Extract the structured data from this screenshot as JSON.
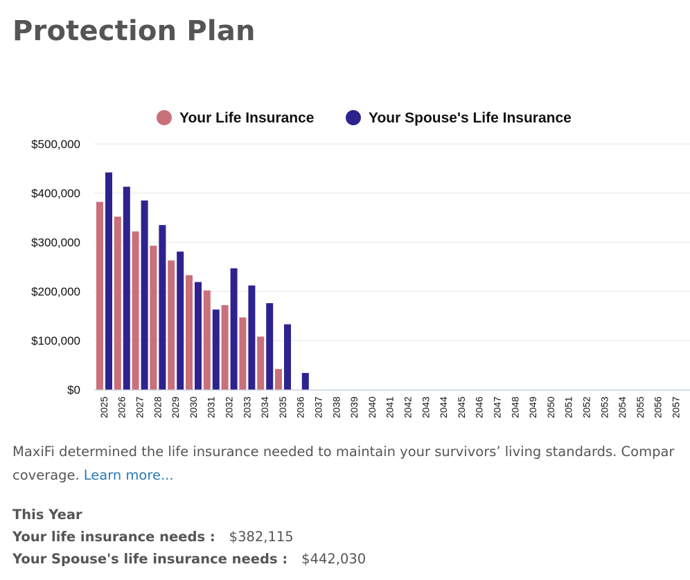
{
  "page": {
    "title": "Protection Plan"
  },
  "chart_data": {
    "type": "bar",
    "categories": [
      "2025",
      "2026",
      "2027",
      "2028",
      "2029",
      "2030",
      "2031",
      "2032",
      "2033",
      "2034",
      "2035",
      "2036",
      "2037",
      "2038",
      "2039",
      "2040",
      "2041",
      "2042",
      "2043",
      "2044",
      "2045",
      "2046",
      "2047",
      "2048",
      "2049",
      "2050",
      "2051",
      "2052",
      "2053",
      "2054",
      "2055",
      "2056",
      "2057"
    ],
    "series": [
      {
        "name": "Your Life Insurance",
        "color": "#c9707b",
        "values": [
          382115,
          352000,
          322000,
          293000,
          263000,
          233000,
          202000,
          172000,
          147000,
          108000,
          42000,
          0,
          0,
          0,
          0,
          0,
          0,
          0,
          0,
          0,
          0,
          0,
          0,
          0,
          0,
          0,
          0,
          0,
          0,
          0,
          0,
          0,
          0
        ]
      },
      {
        "name": "Your Spouse's Life Insurance",
        "color": "#2e228f",
        "values": [
          442030,
          413000,
          385000,
          335000,
          281000,
          219000,
          163000,
          247000,
          212000,
          176000,
          133000,
          34000,
          0,
          0,
          0,
          0,
          0,
          0,
          0,
          0,
          0,
          0,
          0,
          0,
          0,
          0,
          0,
          0,
          0,
          0,
          0,
          0,
          0
        ]
      }
    ],
    "y_ticks": [
      "$0",
      "$100,000",
      "$200,000",
      "$300,000",
      "$400,000",
      "$500,000"
    ],
    "ylim": [
      0,
      500000
    ],
    "grid": true,
    "legend_position": "top-right",
    "xlabel": "",
    "ylabel": ""
  },
  "description": {
    "line1": "MaxiFi determined the life insurance needed to maintain your survivors’ living standards. Compar",
    "line2": "coverage.",
    "link": "Learn more..."
  },
  "summary": {
    "heading": "This Year",
    "your_label": "Your life insurance needs :",
    "your_value": "$382,115",
    "spouse_label": "Your Spouse's life insurance needs :",
    "spouse_value": "$442,030"
  }
}
